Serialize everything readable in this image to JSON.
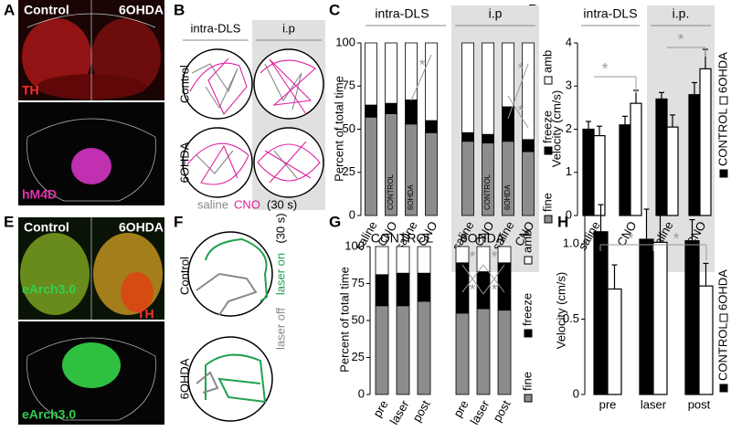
{
  "panel_labels": [
    "A",
    "B",
    "C",
    "D",
    "E",
    "F",
    "G",
    "H"
  ],
  "panel_a": {
    "left": "Control",
    "right": "6OHDA",
    "stain_top": "TH",
    "stain_bottom": "hM4D"
  },
  "panel_b": {
    "columns": [
      "intra-DLS",
      "i.p"
    ],
    "rows": [
      "Control",
      "6OHDA"
    ],
    "legend": [
      "saline",
      "CNO",
      "(30 s)"
    ]
  },
  "panel_e": {
    "left": "Control",
    "right": "6OHDA",
    "stain_top_left": "eArch3.0",
    "stain_top_right": "TH",
    "stain_bottom": "eArch3.0"
  },
  "panel_f": {
    "rows": [
      "Control",
      "6OHDA"
    ],
    "legend": [
      "laser on",
      "laser off",
      "(30 s)"
    ]
  },
  "chart_data": [
    {
      "type": "stacked-bar",
      "y_label": "Percent of total time",
      "group_labels": [
        "intra-DLS",
        "i.p"
      ],
      "categories": [
        "saline",
        "CNO",
        "saline",
        "CNO",
        "saline",
        "CNO",
        "saline",
        "CNO"
      ],
      "bar_labels": [
        null,
        "CONTROL",
        "6OHDA",
        null,
        null,
        "CONTROL",
        "6OHDA",
        null
      ],
      "series": [
        {
          "name": "fine",
          "color": "#8c8c8c",
          "values": [
            57,
            59,
            53,
            48,
            43,
            42,
            43,
            37
          ]
        },
        {
          "name": "freeze",
          "color": "#000000",
          "values": [
            7,
            6,
            14,
            7,
            5,
            5,
            20,
            7
          ]
        },
        {
          "name": "amb",
          "color": "#ffffff",
          "values": [
            36,
            35,
            33,
            45,
            52,
            53,
            37,
            56
          ]
        }
      ],
      "ylim": [
        0,
        100
      ],
      "yticks": [
        0,
        25,
        50,
        75,
        100
      ],
      "significance": [
        "*",
        "*",
        "*"
      ]
    },
    {
      "type": "grouped-bar",
      "y_label": "Velocity (cm/s)",
      "group_labels": [
        "intra-DLS",
        "i.p."
      ],
      "categories": [
        "saline",
        "CNO",
        "saline",
        "CNO"
      ],
      "series": [
        {
          "name": "CONTROL",
          "color": "#000000",
          "values": [
            2.0,
            2.1,
            2.7,
            2.8
          ],
          "errors": [
            0.18,
            0.2,
            0.15,
            0.28
          ]
        },
        {
          "name": "6OHDA",
          "color": "#ffffff",
          "values": [
            1.85,
            2.6,
            2.05,
            3.4
          ],
          "errors": [
            0.22,
            0.3,
            0.28,
            0.45
          ]
        }
      ],
      "ylim": [
        0,
        4
      ],
      "yticks": [
        0,
        1,
        2,
        3,
        4
      ],
      "significance": [
        "*",
        "*"
      ]
    },
    {
      "type": "stacked-bar",
      "y_label": "Percent of total time",
      "group_labels": [
        "CONTROL",
        "6OHDA"
      ],
      "categories": [
        "pre",
        "laser",
        "post",
        "pre",
        "laser",
        "post"
      ],
      "series": [
        {
          "name": "fine",
          "color": "#8c8c8c",
          "values": [
            60,
            60,
            63,
            55,
            58,
            57
          ]
        },
        {
          "name": "freeze",
          "color": "#000000",
          "values": [
            21,
            22,
            19,
            34,
            25,
            32
          ]
        },
        {
          "name": "amb",
          "color": "#ffffff",
          "values": [
            19,
            18,
            18,
            11,
            17,
            11
          ]
        }
      ],
      "ylim": [
        0,
        100
      ],
      "yticks": [
        0,
        25,
        50,
        75,
        100
      ],
      "significance": [
        "*",
        "*",
        "*",
        "*"
      ]
    },
    {
      "type": "grouped-bar",
      "y_label": "Velocity (cm/s)",
      "categories": [
        "pre",
        "laser",
        "post"
      ],
      "series": [
        {
          "name": "CONTROL",
          "color": "#000000",
          "values": [
            1.08,
            1.03,
            1.02
          ],
          "errors": [
            0.18,
            0.2,
            0.14
          ]
        },
        {
          "name": "6OHDA",
          "color": "#ffffff",
          "values": [
            0.7,
            1.01,
            0.72
          ],
          "errors": [
            0.16,
            0.22,
            0.15
          ]
        }
      ],
      "ylim": [
        0,
        1.2
      ],
      "yticks": [
        0,
        0.5,
        {
          "value": 1,
          "label": "1.0"
        }
      ],
      "significance": [
        "*",
        "*"
      ]
    }
  ]
}
